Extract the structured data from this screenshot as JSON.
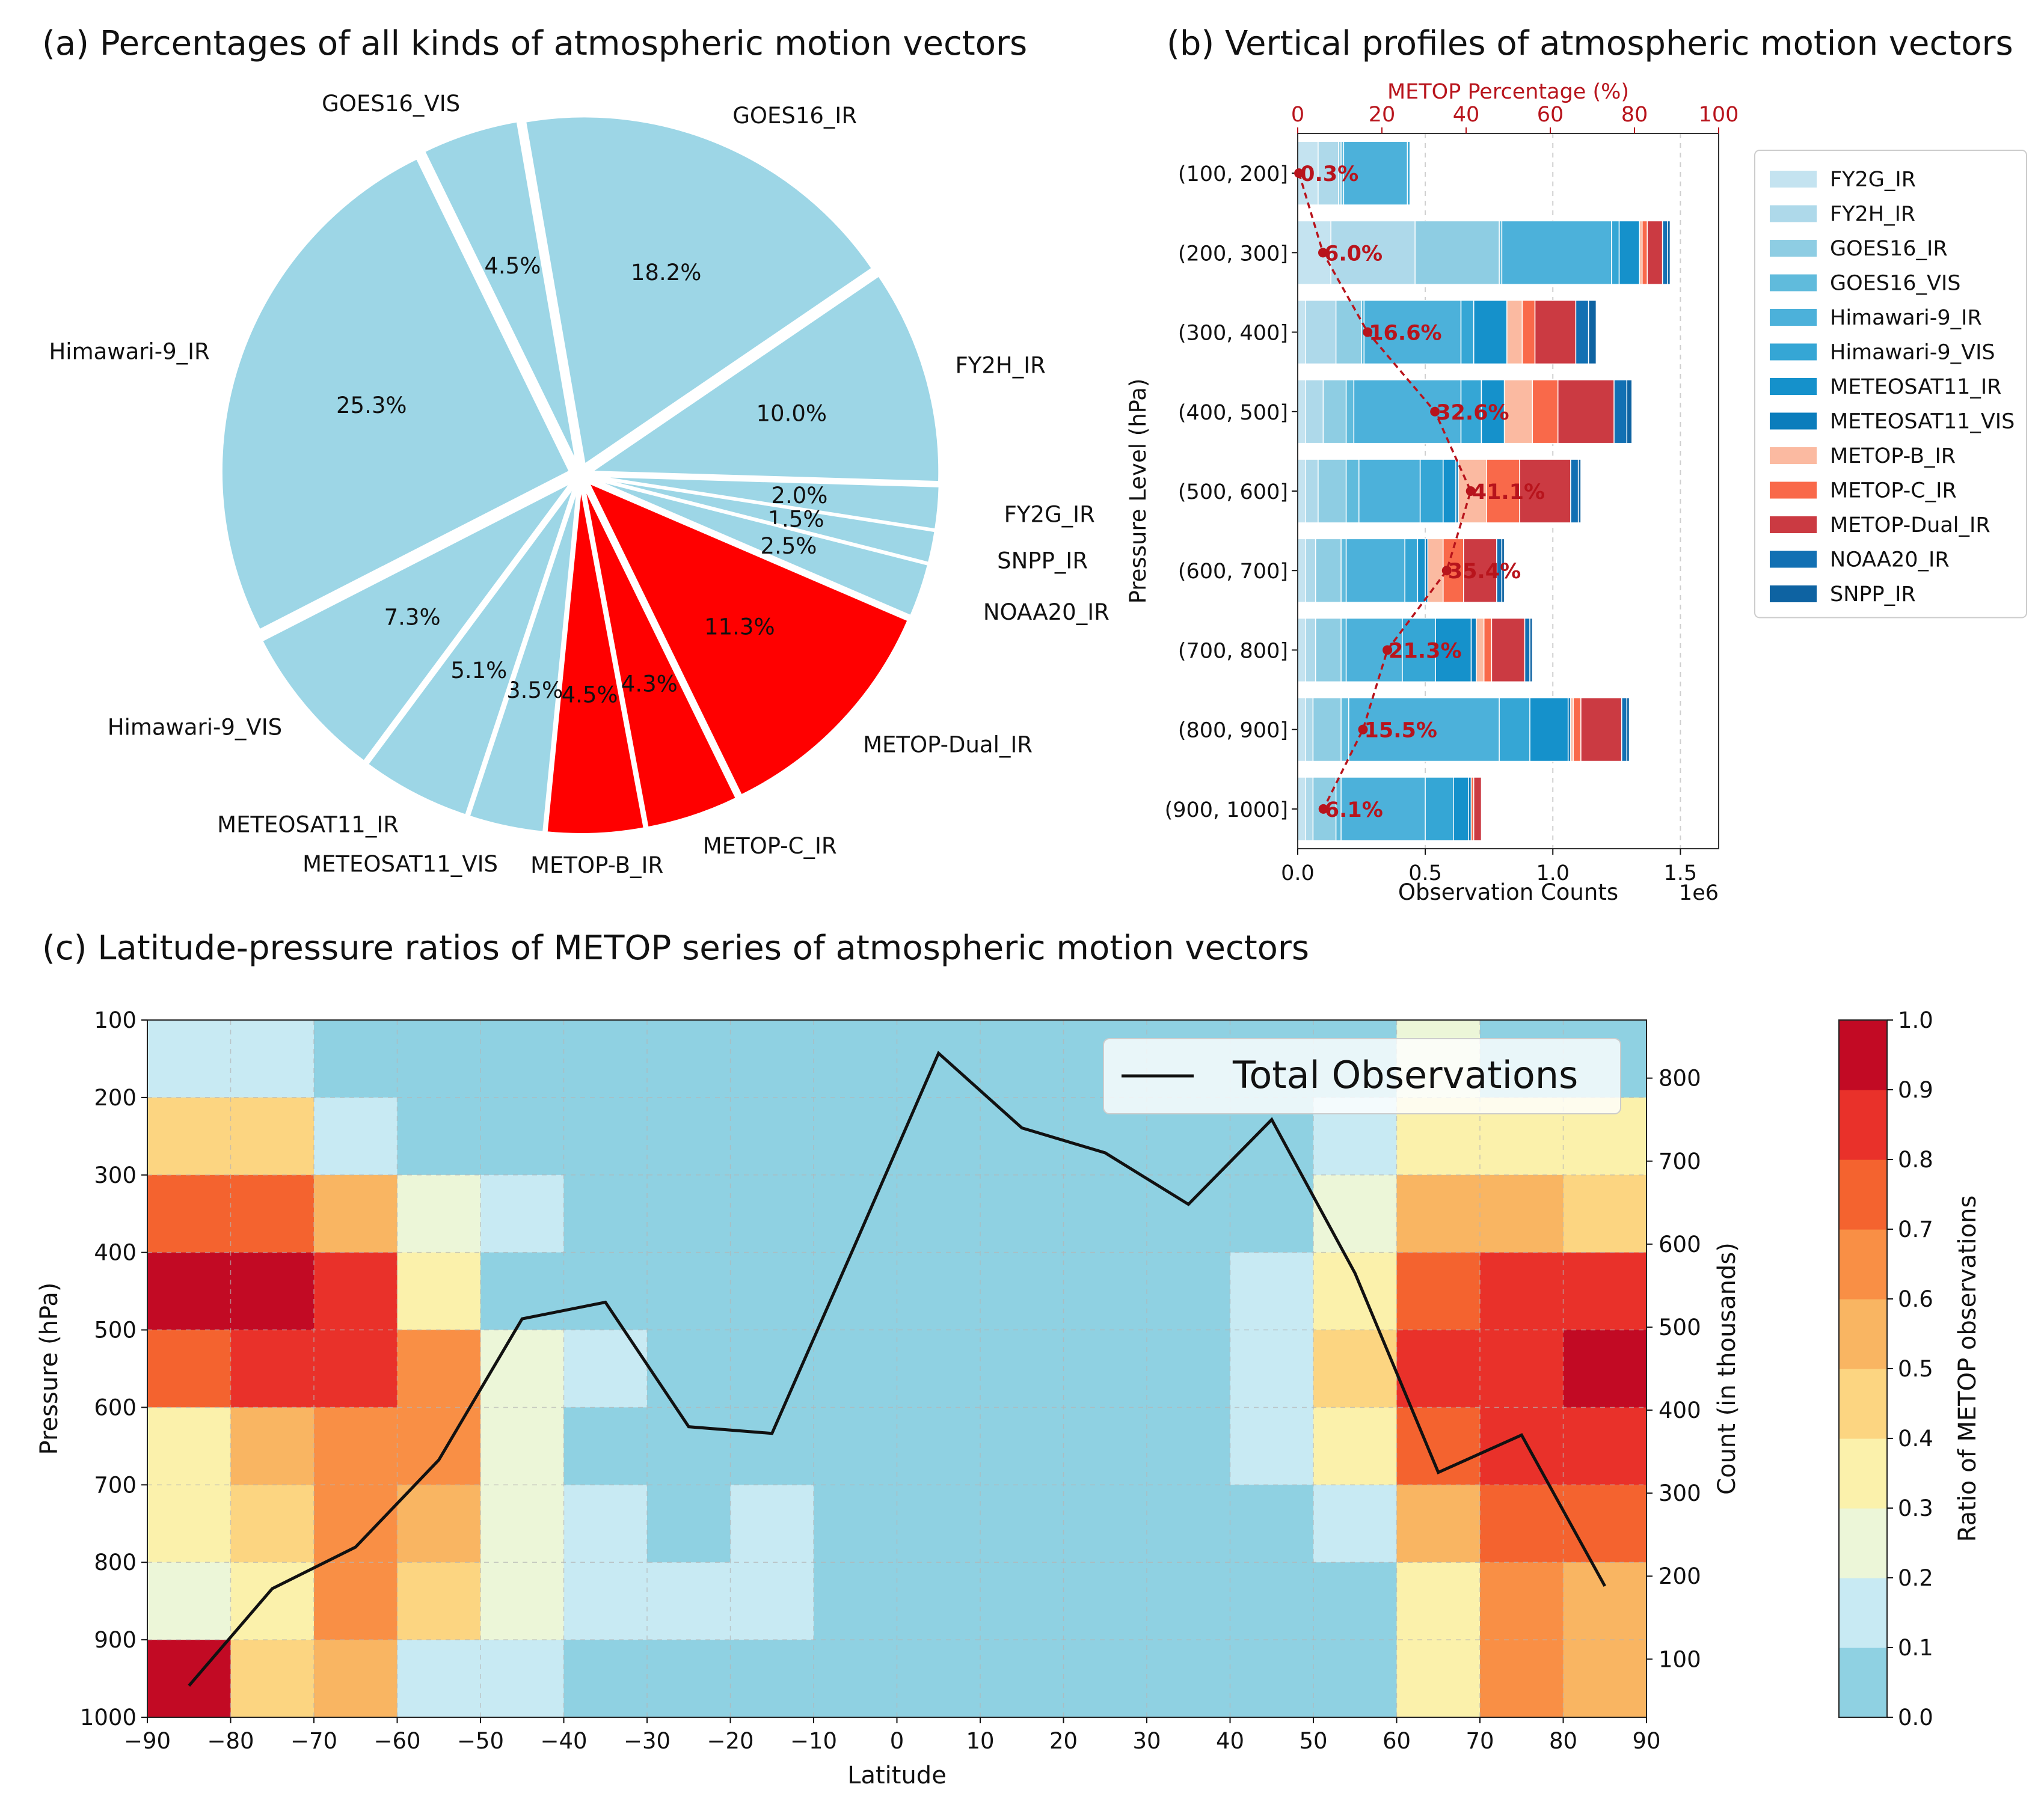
{
  "colors": {
    "pie_blue": "#9dd6e6",
    "pie_red": "#ff0000",
    "metop_line": "#b8141c",
    "heat_bins": [
      "#8fd1e2",
      "#c8eaf3",
      "#ecf6d8",
      "#fbf1ab",
      "#fcd581",
      "#f9b562",
      "#f98f45",
      "#f4632f",
      "#e9312a",
      "#c20a24"
    ]
  },
  "chart_data": [
    {
      "type": "pie",
      "title": "(a) Percentages of all kinds of atmospheric motion vectors",
      "slices": [
        {
          "label": "FY2G_IR",
          "value": 2.0,
          "pct": "2.0%",
          "metop": false
        },
        {
          "label": "SNPP_IR",
          "value": 1.5,
          "pct": "1.5%",
          "metop": false
        },
        {
          "label": "NOAA20_IR",
          "value": 2.5,
          "pct": "2.5%",
          "metop": false
        },
        {
          "label": "METOP-Dual_IR",
          "value": 11.3,
          "pct": "11.3%",
          "metop": true
        },
        {
          "label": "METOP-C_IR",
          "value": 4.3,
          "pct": "4.3%",
          "metop": true
        },
        {
          "label": "METOP-B_IR",
          "value": 4.5,
          "pct": "4.5%",
          "metop": true
        },
        {
          "label": "METEOSAT11_VIS",
          "value": 3.5,
          "pct": "3.5%",
          "metop": false
        },
        {
          "label": "METEOSAT11_IR",
          "value": 5.1,
          "pct": "5.1%",
          "metop": false
        },
        {
          "label": "Himawari-9_VIS",
          "value": 7.3,
          "pct": "7.3%",
          "metop": false
        },
        {
          "label": "Himawari-9_IR",
          "value": 25.3,
          "pct": "25.3%",
          "metop": false
        },
        {
          "label": "GOES16_VIS",
          "value": 4.5,
          "pct": "4.5%",
          "metop": false
        },
        {
          "label": "GOES16_IR",
          "value": 18.2,
          "pct": "18.2%",
          "metop": false
        },
        {
          "label": "FY2H_IR",
          "value": 10.0,
          "pct": "10.0%",
          "metop": false
        }
      ]
    },
    {
      "type": "bar",
      "orientation": "horizontal-stacked",
      "title": "(b) Vertical profiles of atmospheric motion vectors",
      "xlabel": "Observation Counts",
      "x_multiplier": "1e6",
      "ylabel": "Pressure Level (hPa)",
      "xlim": [
        0,
        1.65
      ],
      "xticks": [
        0.0,
        0.5,
        1.0,
        1.5
      ],
      "xtick_labels": [
        "0.0",
        "0.5",
        "1.0",
        "1.5"
      ],
      "top_axis_label": "METOP Percentage (%)",
      "top_xlim": [
        0,
        100
      ],
      "top_ticks": [
        0,
        20,
        40,
        60,
        80,
        100
      ],
      "categories": [
        "(100, 200]",
        "(200, 300]",
        "(300, 400]",
        "(400, 500]",
        "(500, 600]",
        "(600, 700]",
        "(700, 800]",
        "(800, 900]",
        "(900, 1000]"
      ],
      "series": [
        {
          "name": "FY2G_IR",
          "color": "#c4e3f0",
          "values": [
            0.08,
            0.13,
            0.03,
            0.03,
            0.03,
            0.03,
            0.03,
            0.03,
            0.03
          ]
        },
        {
          "name": "FY2H_IR",
          "color": "#aed9ea",
          "values": [
            0.08,
            0.33,
            0.12,
            0.07,
            0.05,
            0.04,
            0.04,
            0.03,
            0.03
          ]
        },
        {
          "name": "GOES16_IR",
          "color": "#8ecde3",
          "values": [
            0.01,
            0.33,
            0.1,
            0.09,
            0.11,
            0.1,
            0.1,
            0.11,
            0.09
          ]
        },
        {
          "name": "GOES16_VIS",
          "color": "#60bbdc",
          "values": [
            0.01,
            0.01,
            0.01,
            0.03,
            0.05,
            0.02,
            0.02,
            0.03,
            0.02
          ]
        },
        {
          "name": "Himawari-9_IR",
          "color": "#4cb1da",
          "values": [
            0.25,
            0.43,
            0.38,
            0.42,
            0.24,
            0.23,
            0.22,
            0.59,
            0.33
          ]
        },
        {
          "name": "Himawari-9_VIS",
          "color": "#35a6d5",
          "values": [
            0.01,
            0.03,
            0.05,
            0.08,
            0.09,
            0.05,
            0.13,
            0.12,
            0.11
          ]
        },
        {
          "name": "METEOSAT11_IR",
          "color": "#1591cb",
          "values": [
            0.0,
            0.08,
            0.13,
            0.09,
            0.05,
            0.03,
            0.14,
            0.15,
            0.06
          ]
        },
        {
          "name": "METEOSAT11_VIS",
          "color": "#0b7dbc",
          "values": [
            0.0,
            0.0,
            0.0,
            0.0,
            0.01,
            0.01,
            0.02,
            0.01,
            0.01
          ]
        },
        {
          "name": "METOP-B_IR",
          "color": "#fbbaa1",
          "values": [
            0.0,
            0.01,
            0.06,
            0.11,
            0.11,
            0.06,
            0.03,
            0.01,
            0.0
          ]
        },
        {
          "name": "METOP-C_IR",
          "color": "#f9694a",
          "values": [
            0.0,
            0.02,
            0.05,
            0.1,
            0.13,
            0.08,
            0.03,
            0.03,
            0.01
          ]
        },
        {
          "name": "METOP-Dual_IR",
          "color": "#cb3a42",
          "values": [
            0.0,
            0.06,
            0.16,
            0.22,
            0.2,
            0.13,
            0.13,
            0.16,
            0.03
          ]
        },
        {
          "name": "NOAA20_IR",
          "color": "#1270b3",
          "values": [
            0.0,
            0.02,
            0.05,
            0.05,
            0.03,
            0.02,
            0.02,
            0.02,
            0.0
          ]
        },
        {
          "name": "SNPP_IR",
          "color": "#0e63a2",
          "values": [
            0.0,
            0.01,
            0.03,
            0.02,
            0.01,
            0.01,
            0.01,
            0.01,
            0.0
          ]
        }
      ],
      "metop_percentage": [
        0.3,
        6.0,
        16.6,
        32.6,
        41.1,
        35.4,
        21.3,
        15.5,
        6.1
      ],
      "metop_labels": [
        "0.3%",
        "6.0%",
        "16.6%",
        "32.6%",
        "41.1%",
        "35.4%",
        "21.3%",
        "15.5%",
        "6.1%"
      ]
    },
    {
      "type": "heatmap",
      "title": "(c) Latitude-pressure ratios of METOP series of atmospheric motion vectors",
      "xlabel": "Latitude",
      "ylabel": "Pressure (hPa)",
      "xlim": [
        -90,
        90
      ],
      "ylim": [
        1000,
        100
      ],
      "xticks": [
        -90,
        -80,
        -70,
        -60,
        -50,
        -40,
        -30,
        -20,
        -10,
        0,
        10,
        20,
        30,
        40,
        50,
        60,
        70,
        80,
        90
      ],
      "xtick_labels": [
        "−90",
        "−80",
        "−70",
        "−60",
        "−50",
        "−40",
        "−30",
        "−20",
        "−10",
        "0",
        "10",
        "20",
        "30",
        "40",
        "50",
        "60",
        "70",
        "80",
        "90"
      ],
      "yticks": [
        100,
        200,
        300,
        400,
        500,
        600,
        700,
        800,
        900,
        1000
      ],
      "ytick_labels": [
        "100",
        "200",
        "300",
        "400",
        "500",
        "600",
        "700",
        "800",
        "900",
        "1000"
      ],
      "lat_edges": [
        -90,
        -80,
        -70,
        -60,
        -50,
        -40,
        -30,
        -20,
        -10,
        0,
        10,
        20,
        30,
        40,
        50,
        60,
        70,
        80,
        90
      ],
      "pressure_edges": [
        100,
        200,
        300,
        400,
        500,
        600,
        700,
        800,
        900,
        1000
      ],
      "ratio": [
        [
          0.15,
          0.15,
          0.05,
          0.05,
          0.05,
          0.05,
          0.05,
          0.05,
          0.05,
          0.05,
          0.05,
          0.05,
          0.05,
          0.05,
          0.05,
          0.25,
          0.05,
          0.05
        ],
        [
          0.45,
          0.45,
          0.15,
          0.05,
          0.05,
          0.05,
          0.05,
          0.05,
          0.05,
          0.05,
          0.05,
          0.05,
          0.05,
          0.05,
          0.15,
          0.35,
          0.35,
          0.35
        ],
        [
          0.75,
          0.75,
          0.55,
          0.25,
          0.15,
          0.05,
          0.05,
          0.05,
          0.05,
          0.05,
          0.05,
          0.05,
          0.05,
          0.05,
          0.25,
          0.55,
          0.55,
          0.45
        ],
        [
          0.95,
          0.95,
          0.85,
          0.35,
          0.05,
          0.05,
          0.05,
          0.05,
          0.05,
          0.05,
          0.05,
          0.05,
          0.05,
          0.15,
          0.35,
          0.75,
          0.85,
          0.85
        ],
        [
          0.75,
          0.85,
          0.85,
          0.65,
          0.25,
          0.15,
          0.05,
          0.05,
          0.05,
          0.05,
          0.05,
          0.05,
          0.05,
          0.15,
          0.45,
          0.85,
          0.85,
          0.95
        ],
        [
          0.35,
          0.55,
          0.65,
          0.65,
          0.25,
          0.05,
          0.05,
          0.05,
          0.05,
          0.05,
          0.05,
          0.05,
          0.05,
          0.15,
          0.35,
          0.75,
          0.85,
          0.85
        ],
        [
          0.35,
          0.45,
          0.65,
          0.55,
          0.25,
          0.15,
          0.05,
          0.15,
          0.05,
          0.05,
          0.05,
          0.05,
          0.05,
          0.05,
          0.15,
          0.55,
          0.75,
          0.75
        ],
        [
          0.25,
          0.35,
          0.65,
          0.45,
          0.25,
          0.15,
          0.15,
          0.15,
          0.05,
          0.05,
          0.05,
          0.05,
          0.05,
          0.05,
          0.05,
          0.35,
          0.65,
          0.55
        ],
        [
          0.95,
          0.45,
          0.55,
          0.15,
          0.15,
          0.05,
          0.05,
          0.05,
          0.05,
          0.05,
          0.05,
          0.05,
          0.05,
          0.05,
          0.05,
          0.35,
          0.65,
          0.55
        ]
      ],
      "line": {
        "name": "Total Observations",
        "ylabel": "Count (in thousands)",
        "ylim": [
          30,
          870
        ],
        "yticks": [
          100,
          200,
          300,
          400,
          500,
          600,
          700,
          800
        ],
        "ytick_labels": [
          "100",
          "200",
          "300",
          "400",
          "500",
          "600",
          "700",
          "800"
        ],
        "x": [
          -85,
          -75,
          -65,
          -55,
          -45,
          -35,
          -25,
          -15,
          -5,
          5,
          15,
          25,
          35,
          45,
          55,
          65,
          75,
          85
        ],
        "y": [
          68,
          185,
          235,
          340,
          510,
          530,
          380,
          372,
          600,
          830,
          740,
          710,
          648,
          750,
          565,
          325,
          370,
          188
        ]
      },
      "legend": "Total Observations",
      "colorbar": {
        "label": "Ratio of METOP observations",
        "ticks": [
          0.0,
          0.1,
          0.2,
          0.3,
          0.4,
          0.5,
          0.6,
          0.7,
          0.8,
          0.9,
          1.0
        ],
        "tick_labels": [
          "0.0",
          "0.1",
          "0.2",
          "0.3",
          "0.4",
          "0.5",
          "0.6",
          "0.7",
          "0.8",
          "0.9",
          "1.0"
        ]
      }
    }
  ]
}
